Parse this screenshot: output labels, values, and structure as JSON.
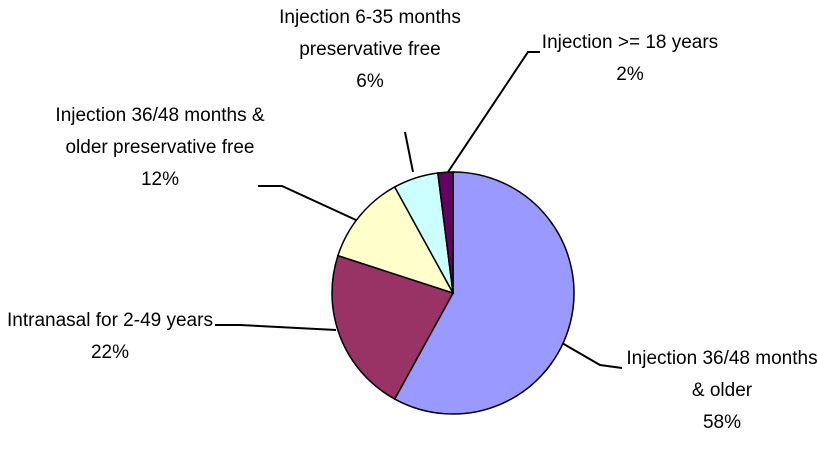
{
  "chart_data": {
    "type": "pie",
    "categories": [
      "Injection 36/48 months & older",
      "Intranasal for 2-49 years",
      "Injection 36/48 months & older preservative free",
      "Injection 6-35 months preservative free",
      "Injection >= 18 years"
    ],
    "values": [
      58,
      22,
      12,
      6,
      2
    ],
    "value_labels": [
      "58%",
      "22%",
      "12%",
      "6%",
      "2%"
    ],
    "colors": [
      "#9999ff",
      "#993366",
      "#ffffcc",
      "#ccffff",
      "#660066"
    ]
  }
}
